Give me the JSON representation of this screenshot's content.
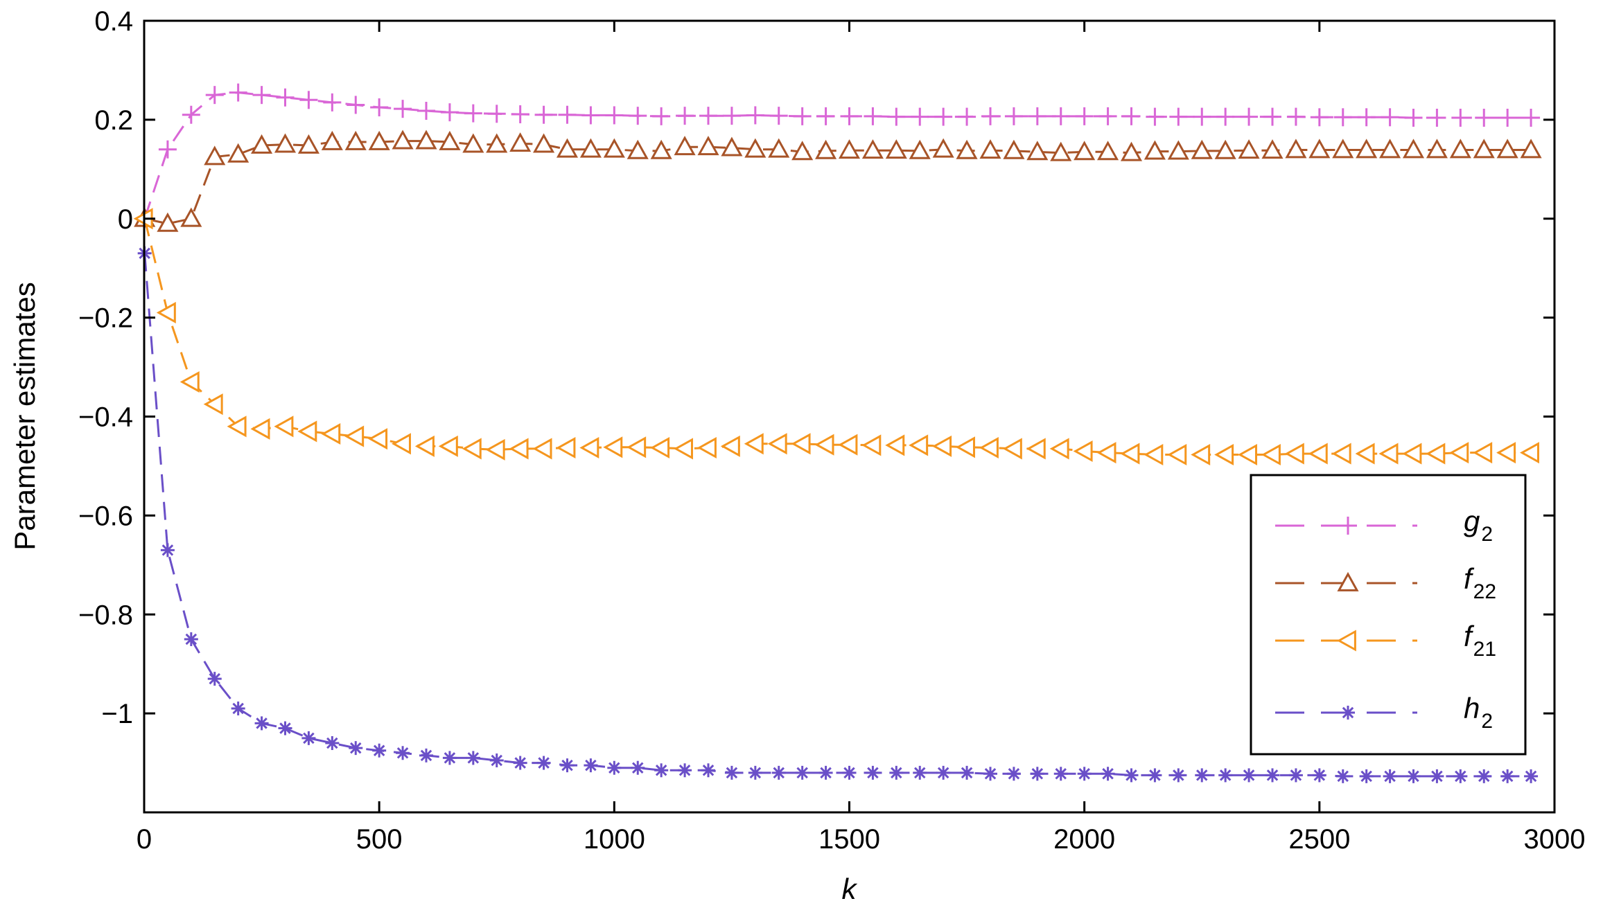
{
  "chart_data": {
    "type": "line",
    "title": "",
    "xlabel": "k",
    "ylabel": "Parameter estimates",
    "xlim": [
      0,
      3000
    ],
    "ylim": [
      -1.2,
      0.4
    ],
    "xticks": [
      0,
      500,
      1000,
      1500,
      2000,
      2500,
      3000
    ],
    "xtick_labels": [
      "0",
      "500",
      "1000",
      "1500",
      "2000",
      "2500",
      "3000"
    ],
    "yticks": [
      0.4,
      0.2,
      0,
      -0.2,
      -0.4,
      -0.6,
      -0.8,
      -1
    ],
    "ytick_labels": [
      "0.4",
      "0.2",
      "0",
      "−0.2",
      "−0.4",
      "−0.6",
      "−0.8",
      "−1"
    ],
    "grid": false,
    "legend_position": "bottom-right",
    "x": [
      1,
      50,
      100,
      150,
      200,
      250,
      300,
      350,
      400,
      450,
      500,
      550,
      600,
      650,
      700,
      750,
      800,
      850,
      900,
      950,
      1000,
      1050,
      1100,
      1150,
      1200,
      1250,
      1300,
      1350,
      1400,
      1450,
      1500,
      1550,
      1600,
      1650,
      1700,
      1750,
      1800,
      1850,
      1900,
      1950,
      2000,
      2050,
      2100,
      2150,
      2200,
      2250,
      2300,
      2350,
      2400,
      2450,
      2500,
      2550,
      2600,
      2650,
      2700,
      2750,
      2800,
      2850,
      2900,
      2950
    ],
    "series": [
      {
        "name": "g",
        "subscript": "2",
        "color": "#D966D6",
        "marker": "plus",
        "values": [
          0.0,
          0.14,
          0.21,
          0.25,
          0.255,
          0.25,
          0.245,
          0.24,
          0.235,
          0.23,
          0.225,
          0.222,
          0.218,
          0.215,
          0.213,
          0.212,
          0.211,
          0.21,
          0.21,
          0.209,
          0.209,
          0.208,
          0.207,
          0.208,
          0.208,
          0.208,
          0.209,
          0.208,
          0.207,
          0.207,
          0.207,
          0.207,
          0.206,
          0.206,
          0.206,
          0.206,
          0.207,
          0.207,
          0.207,
          0.207,
          0.207,
          0.207,
          0.207,
          0.206,
          0.206,
          0.206,
          0.206,
          0.206,
          0.206,
          0.206,
          0.205,
          0.205,
          0.205,
          0.205,
          0.204,
          0.204,
          0.204,
          0.204,
          0.204,
          0.204
        ]
      },
      {
        "name": "f",
        "subscript": "22",
        "color": "#A85428",
        "marker": "triangle-up",
        "values": [
          0.0,
          -0.01,
          0.0,
          0.125,
          0.13,
          0.148,
          0.15,
          0.148,
          0.155,
          0.155,
          0.155,
          0.157,
          0.157,
          0.155,
          0.15,
          0.15,
          0.152,
          0.15,
          0.14,
          0.14,
          0.14,
          0.137,
          0.137,
          0.145,
          0.145,
          0.143,
          0.14,
          0.14,
          0.135,
          0.137,
          0.138,
          0.138,
          0.138,
          0.137,
          0.14,
          0.137,
          0.138,
          0.137,
          0.135,
          0.133,
          0.135,
          0.135,
          0.133,
          0.136,
          0.136,
          0.137,
          0.137,
          0.138,
          0.138,
          0.139,
          0.139,
          0.139,
          0.139,
          0.139,
          0.139,
          0.139,
          0.139,
          0.139,
          0.139,
          0.139
        ]
      },
      {
        "name": "f",
        "subscript": "21",
        "color": "#F5961E",
        "marker": "triangle-left",
        "values": [
          0.0,
          -0.19,
          -0.33,
          -0.375,
          -0.42,
          -0.425,
          -0.42,
          -0.43,
          -0.435,
          -0.44,
          -0.445,
          -0.455,
          -0.46,
          -0.46,
          -0.465,
          -0.467,
          -0.465,
          -0.465,
          -0.463,
          -0.463,
          -0.462,
          -0.462,
          -0.463,
          -0.465,
          -0.463,
          -0.46,
          -0.455,
          -0.455,
          -0.455,
          -0.457,
          -0.457,
          -0.458,
          -0.458,
          -0.458,
          -0.46,
          -0.462,
          -0.463,
          -0.465,
          -0.465,
          -0.465,
          -0.47,
          -0.473,
          -0.475,
          -0.477,
          -0.477,
          -0.477,
          -0.477,
          -0.477,
          -0.477,
          -0.475,
          -0.475,
          -0.475,
          -0.475,
          -0.475,
          -0.475,
          -0.475,
          -0.473,
          -0.473,
          -0.473,
          -0.473
        ]
      },
      {
        "name": "h",
        "subscript": "2",
        "color": "#6A4FC8",
        "marker": "asterisk",
        "values": [
          -0.07,
          -0.67,
          -0.85,
          -0.93,
          -0.99,
          -1.02,
          -1.03,
          -1.05,
          -1.06,
          -1.07,
          -1.075,
          -1.08,
          -1.085,
          -1.09,
          -1.09,
          -1.095,
          -1.1,
          -1.1,
          -1.105,
          -1.105,
          -1.11,
          -1.11,
          -1.115,
          -1.115,
          -1.115,
          -1.12,
          -1.12,
          -1.12,
          -1.12,
          -1.12,
          -1.12,
          -1.12,
          -1.12,
          -1.12,
          -1.12,
          -1.12,
          -1.122,
          -1.122,
          -1.122,
          -1.122,
          -1.122,
          -1.122,
          -1.125,
          -1.125,
          -1.125,
          -1.125,
          -1.125,
          -1.125,
          -1.125,
          -1.125,
          -1.125,
          -1.127,
          -1.127,
          -1.127,
          -1.127,
          -1.127,
          -1.127,
          -1.127,
          -1.127,
          -1.127
        ]
      }
    ]
  }
}
